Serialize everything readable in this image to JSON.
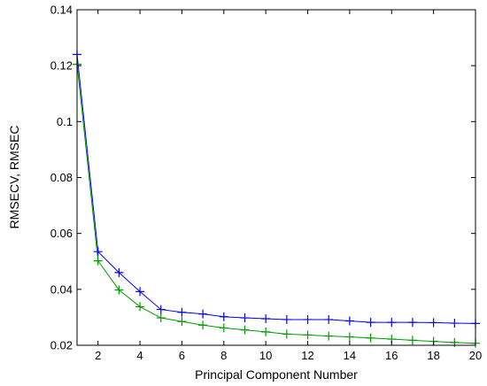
{
  "chart_data": {
    "type": "line",
    "title": "",
    "xlabel": "Principal Component Number",
    "ylabel": "RMSECV, RMSEC",
    "xlim": [
      1,
      20
    ],
    "ylim": [
      0.02,
      0.14
    ],
    "xticks": [
      2,
      4,
      6,
      8,
      10,
      12,
      14,
      16,
      18,
      20
    ],
    "xtick_labels": [
      "2",
      "4",
      "6",
      "8",
      "10",
      "12",
      "14",
      "16",
      "18",
      "20"
    ],
    "yticks": [
      0.02,
      0.04,
      0.06,
      0.08,
      0.1,
      0.12,
      0.14
    ],
    "ytick_labels": [
      "0.02",
      "0.04",
      "0.06",
      "0.08",
      "0.1",
      "0.12",
      "0.14"
    ],
    "grid": false,
    "marker": "+",
    "x": [
      1,
      2,
      3,
      4,
      5,
      6,
      7,
      8,
      9,
      10,
      11,
      12,
      13,
      14,
      15,
      16,
      17,
      18,
      19,
      20
    ],
    "series": [
      {
        "color": "#0000ff",
        "values": [
          0.124,
          0.0535,
          0.046,
          0.0392,
          0.0328,
          0.0318,
          0.0312,
          0.0302,
          0.0298,
          0.0295,
          0.0292,
          0.0292,
          0.0292,
          0.0287,
          0.0282,
          0.0282,
          0.0282,
          0.0281,
          0.0279,
          0.0278
        ]
      },
      {
        "color": "#009900",
        "values": [
          0.1205,
          0.0502,
          0.0398,
          0.0338,
          0.0298,
          0.0285,
          0.0272,
          0.0262,
          0.0255,
          0.0248,
          0.024,
          0.0237,
          0.0233,
          0.023,
          0.0226,
          0.0222,
          0.0218,
          0.0214,
          0.021,
          0.0207
        ]
      }
    ]
  }
}
